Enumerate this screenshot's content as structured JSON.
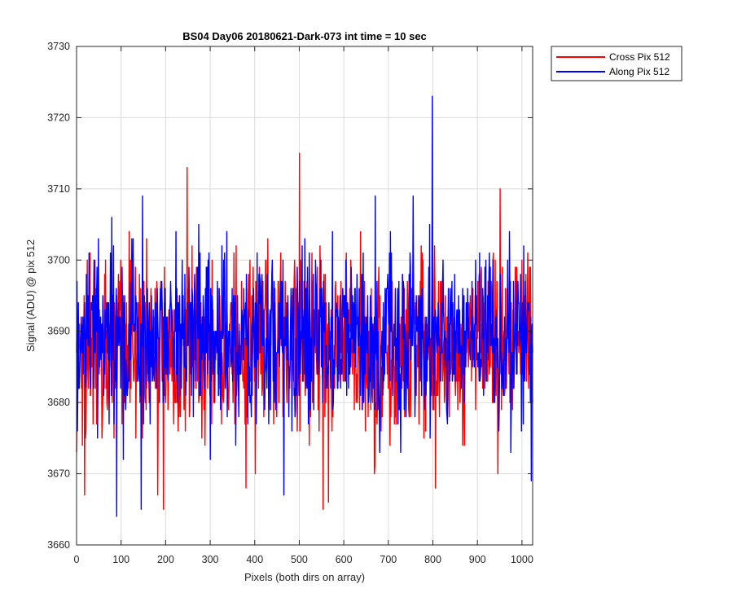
{
  "chart_data": {
    "type": "line",
    "title": "BS04 Day06 20180621-Dark-073 int time = 10 sec",
    "xlabel": "Pixels (both dirs on array)",
    "ylabel": "Signal (ADU) @ pix 512",
    "xlim": [
      0,
      1024
    ],
    "ylim": [
      3660,
      3730
    ],
    "xticks": [
      0,
      100,
      200,
      300,
      400,
      500,
      600,
      700,
      800,
      900,
      1000
    ],
    "yticks": [
      3660,
      3670,
      3680,
      3690,
      3700,
      3710,
      3720,
      3730
    ],
    "grid": true,
    "legend_placement": "outside-top-right",
    "series": [
      {
        "name": "Cross Pix 512",
        "color": "#ff0000",
        "mean": 3688,
        "noise_amplitude": 6,
        "n_points": 1024,
        "notable_points": [
          {
            "x": 0,
            "y": 3673
          },
          {
            "x": 18,
            "y": 3667
          },
          {
            "x": 182,
            "y": 3667
          },
          {
            "x": 195,
            "y": 3665
          },
          {
            "x": 248,
            "y": 3713
          },
          {
            "x": 380,
            "y": 3668
          },
          {
            "x": 500,
            "y": 3715
          },
          {
            "x": 553,
            "y": 3665
          },
          {
            "x": 565,
            "y": 3666
          },
          {
            "x": 805,
            "y": 3668
          },
          {
            "x": 950,
            "y": 3710
          }
        ]
      },
      {
        "name": "Along Pix 512",
        "color": "#0000ff",
        "mean": 3689,
        "noise_amplitude": 6,
        "n_points": 1024,
        "notable_points": [
          {
            "x": 90,
            "y": 3664
          },
          {
            "x": 145,
            "y": 3665
          },
          {
            "x": 148,
            "y": 3709
          },
          {
            "x": 465,
            "y": 3667
          },
          {
            "x": 670,
            "y": 3709
          },
          {
            "x": 755,
            "y": 3709
          },
          {
            "x": 798,
            "y": 3723
          },
          {
            "x": 1020,
            "y": 3669
          }
        ]
      }
    ]
  },
  "colors": {
    "grid": "#dcdcdc",
    "axes": "#262626",
    "legend_border": "#262626"
  }
}
